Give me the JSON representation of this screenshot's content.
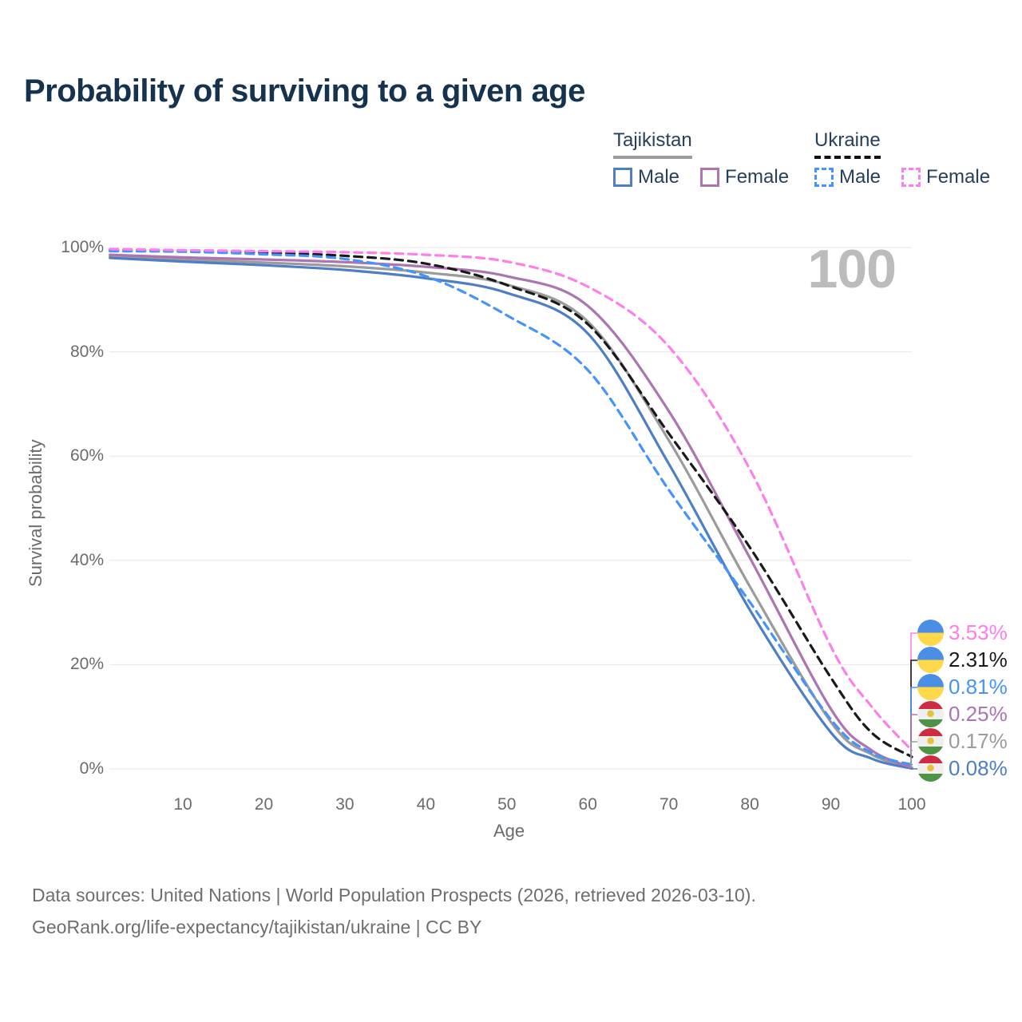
{
  "title": "Probability of surviving to a given age",
  "legend": {
    "tajikistan": {
      "title": "Tajikistan",
      "male_label": "Male",
      "female_label": "Female",
      "male_color": "#4e7ec5",
      "female_color": "#ad74b2",
      "total_color": "#9b9b9b"
    },
    "ukraine": {
      "title": "Ukraine",
      "male_label": "Male",
      "female_label": "Female",
      "male_color": "#4494fb",
      "female_color": "#fd7fe9",
      "total_color": "#1a1a1a"
    }
  },
  "watermark": "100",
  "axes": {
    "x": {
      "label": "Age",
      "ticks": [
        10,
        20,
        30,
        40,
        50,
        60,
        70,
        80,
        90,
        100
      ],
      "min": 0,
      "max": 100
    },
    "y": {
      "label": "Survival probability",
      "ticks": [
        "0%",
        "20%",
        "40%",
        "60%",
        "80%",
        "100%"
      ],
      "min": 0,
      "max": 100
    }
  },
  "chart_data": {
    "type": "line",
    "title": "Probability of surviving to a given age",
    "xlabel": "Age",
    "ylabel": "Survival probability",
    "xlim": [
      0,
      100
    ],
    "ylim": [
      0,
      100
    ],
    "grid": true,
    "legend_position": "top-right",
    "x": [
      1,
      10,
      20,
      30,
      40,
      50,
      60,
      70,
      80,
      90,
      95,
      100
    ],
    "unit": "%",
    "series": [
      {
        "name": "Tajikistan",
        "style": "solid",
        "color": "#9b9b9b",
        "values": [
          98.3,
          97.7,
          97.1,
          96.4,
          95.2,
          92.9,
          85.8,
          63.0,
          35.0,
          9.0,
          2.8,
          0.17
        ]
      },
      {
        "name": "Tajikistan Male",
        "style": "solid",
        "color": "#4e7ec5",
        "values": [
          98.0,
          97.3,
          96.6,
          95.7,
          94.1,
          91.3,
          83.5,
          58.5,
          30.5,
          7.0,
          2.0,
          0.08
        ]
      },
      {
        "name": "Tajikistan Female",
        "style": "solid",
        "color": "#ad74b2",
        "values": [
          98.6,
          98.1,
          97.7,
          97.2,
          96.3,
          94.5,
          88.8,
          68.6,
          40.5,
          11.5,
          3.6,
          0.25
        ]
      },
      {
        "name": "Ukraine",
        "style": "dashed",
        "color": "#1a1a1a",
        "values": [
          99.5,
          99.3,
          99.0,
          98.4,
          96.9,
          92.8,
          85.3,
          64.3,
          42.5,
          17.5,
          7.0,
          2.31
        ]
      },
      {
        "name": "Ukraine Male",
        "style": "dashed",
        "color": "#4494fb",
        "values": [
          99.3,
          99.2,
          98.7,
          97.8,
          94.5,
          87.0,
          76.5,
          53.5,
          32.0,
          9.5,
          3.1,
          0.81
        ]
      },
      {
        "name": "Ukraine Female",
        "style": "dashed",
        "color": "#fd7fe9",
        "values": [
          99.7,
          99.5,
          99.3,
          99.1,
          98.6,
          97.3,
          92.5,
          81.0,
          57.5,
          23.5,
          12.0,
          3.53
        ]
      }
    ]
  },
  "end_labels": [
    {
      "value": "3.53%",
      "series": "Ukraine Female",
      "flag": "ukraine",
      "color": "#fd7fe9"
    },
    {
      "value": "2.31%",
      "series": "Ukraine",
      "flag": "ukraine",
      "color": "#1a1a1a"
    },
    {
      "value": "0.81%",
      "series": "Ukraine Male",
      "flag": "ukraine",
      "color": "#4494fb"
    },
    {
      "value": "0.25%",
      "series": "Tajikistan Female",
      "flag": "tajikistan",
      "color": "#ad74b2"
    },
    {
      "value": "0.17%",
      "series": "Tajikistan",
      "flag": "tajikistan",
      "color": "#9b9b9b"
    },
    {
      "value": "0.08%",
      "series": "Tajikistan Male",
      "flag": "tajikistan",
      "color": "#4e7ec5"
    }
  ],
  "footer": {
    "line1": "Data sources: United Nations | World Population Prospects (2026, retrieved 2026-03-10).",
    "line2": "GeoRank.org/life-expectancy/tajikistan/ukraine | CC BY"
  },
  "colors": {
    "title": "#15334f",
    "axis_text": "#6b6b6b",
    "gridline": "#e7e7e7",
    "watermark": "#bcbcbc"
  }
}
